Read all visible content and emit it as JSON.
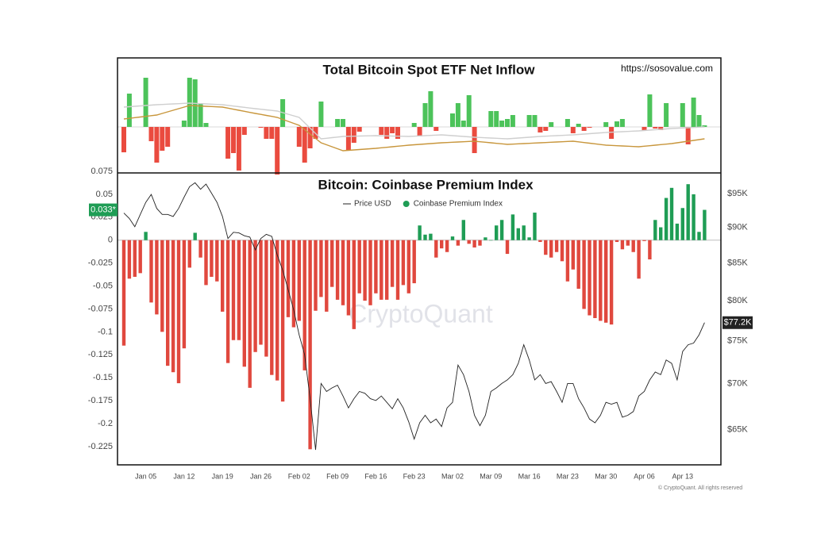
{
  "chart_data": [
    {
      "type": "bar",
      "title": "Total Bitcoin Spot ETF Net Inflow",
      "source": "https://sosovalue.com",
      "ylim": [
        -580,
        870
      ],
      "positive_color": "#4cc35a",
      "negative_color": "#ea4b3f",
      "values": [
        -320,
        420,
        null,
        null,
        620,
        -180,
        -450,
        -300,
        -250,
        null,
        null,
        80,
        620,
        600,
        300,
        50,
        null,
        null,
        null,
        -400,
        -330,
        -550,
        -100,
        null,
        null,
        -10,
        -150,
        -150,
        -600,
        350,
        null,
        null,
        -250,
        -450,
        -270,
        -150,
        320,
        null,
        null,
        100,
        100,
        -300,
        -200,
        -60,
        null,
        null,
        null,
        -100,
        -150,
        -80,
        -150,
        null,
        null,
        50,
        -120,
        300,
        450,
        -50,
        null,
        null,
        170,
        300,
        80,
        400,
        -330,
        null,
        null,
        200,
        200,
        80,
        100,
        150,
        null,
        null,
        150,
        150,
        -70,
        -50,
        60,
        null,
        null,
        100,
        -80,
        40,
        -50,
        -10,
        null,
        null,
        60,
        -150,
        70,
        100,
        null,
        null,
        null,
        -50,
        410,
        -20,
        -40,
        300,
        null,
        null,
        300,
        -220,
        370,
        150,
        20
      ],
      "lines": [
        {
          "color": "#c8963c",
          "values": [
            100,
            108,
            117,
            125,
            133,
            142,
            150,
            170,
            190,
            210,
            230,
            250,
            270,
            267,
            263,
            260,
            257,
            253,
            250,
            237,
            223,
            210,
            197,
            183,
            170,
            158,
            145,
            133,
            120,
            95,
            70,
            45,
            20,
            -35,
            -90,
            -145,
            -200,
            -225,
            -250,
            -275,
            -300,
            -295,
            -290,
            -285,
            -280,
            -275,
            -270,
            -263,
            -257,
            -250,
            -243,
            -237,
            -230,
            -225,
            -220,
            -215,
            -210,
            -205,
            -200,
            -197,
            -193,
            -190,
            -187,
            -183,
            -180,
            -187,
            -193,
            -200,
            -207,
            -213,
            -220,
            -217,
            -213,
            -210,
            -207,
            -203,
            -200,
            -197,
            -193,
            -190,
            -187,
            -183,
            -180,
            -188,
            -197,
            -205,
            -213,
            -222,
            -230,
            -233,
            -237,
            -240,
            -243,
            -247,
            -250,
            -243,
            -237,
            -230,
            -223,
            -217,
            -210,
            -200,
            -190,
            -180,
            -170,
            -160,
            -150
          ]
        },
        {
          "color": "#cfcfcf",
          "values": [
            250,
            255,
            260,
            265,
            270,
            275,
            280,
            283,
            287,
            290,
            293,
            297,
            300,
            297,
            293,
            290,
            287,
            283,
            280,
            272,
            263,
            255,
            247,
            238,
            230,
            223,
            215,
            208,
            200,
            180,
            160,
            140,
            120,
            53,
            -15,
            -83,
            -150,
            -143,
            -135,
            -128,
            -120,
            -118,
            -117,
            -115,
            -113,
            -112,
            -110,
            -112,
            -113,
            -115,
            -117,
            -118,
            -120,
            -117,
            -113,
            -110,
            -107,
            -103,
            -100,
            -105,
            -110,
            -115,
            -120,
            -125,
            -130,
            -133,
            -137,
            -140,
            -143,
            -147,
            -150,
            -145,
            -140,
            -135,
            -130,
            -125,
            -120,
            -117,
            -113,
            -110,
            -107,
            -103,
            -100,
            -95,
            -90,
            -85,
            -80,
            -75,
            -70,
            -67,
            -63,
            -60,
            -57,
            -53,
            -50,
            -45,
            -40,
            -35,
            -30,
            -25,
            -20,
            -17,
            -13,
            -10,
            -7,
            -3,
            0
          ]
        }
      ]
    },
    {
      "type": "combo",
      "title": "Bitcoin: Coinbase Premium Index",
      "watermark": "CryptoQuant",
      "copyright": "© CryptoQuant. All rights reserved",
      "categories": [
        null,
        null,
        null,
        null,
        "Jan 05",
        null,
        null,
        null,
        null,
        null,
        null,
        "Jan 12",
        null,
        null,
        null,
        null,
        null,
        null,
        "Jan 19",
        null,
        null,
        null,
        null,
        null,
        null,
        "Jan 26",
        null,
        null,
        null,
        null,
        null,
        null,
        "Feb 02",
        null,
        null,
        null,
        null,
        null,
        null,
        "Feb 09",
        null,
        null,
        null,
        null,
        null,
        null,
        "Feb 16",
        null,
        null,
        null,
        null,
        null,
        null,
        "Feb 23",
        null,
        null,
        null,
        null,
        null,
        null,
        "Mar 02",
        null,
        null,
        null,
        null,
        null,
        null,
        "Mar 09",
        null,
        null,
        null,
        null,
        null,
        null,
        "Mar 16",
        null,
        null,
        null,
        null,
        null,
        null,
        "Mar 23",
        null,
        null,
        null,
        null,
        null,
        null,
        "Mar 30",
        null,
        null,
        null,
        null,
        null,
        null,
        "Apr 06",
        null,
        null,
        null,
        null,
        null,
        null,
        "Apr 13",
        null,
        null,
        null,
        null
      ],
      "ylim": [
        -0.245,
        0.075
      ],
      "yticks": [
        0.075,
        0.05,
        0.025,
        0,
        -0.025,
        -0.05,
        -0.075,
        -0.1,
        -0.125,
        -0.15,
        -0.175,
        -0.2,
        -0.225
      ],
      "y2lim": [
        61400,
        98500
      ],
      "y2scale": "log",
      "y2ticks": [
        {
          "value": 95000,
          "label": "$95K"
        },
        {
          "value": 90000,
          "label": "$90K"
        },
        {
          "value": 85000,
          "label": "$85K"
        },
        {
          "value": 80000,
          "label": "$80K"
        },
        {
          "value": 75000,
          "label": "$75K"
        },
        {
          "value": 70000,
          "label": "$70K"
        },
        {
          "value": 65000,
          "label": "$65K"
        }
      ],
      "series": [
        {
          "name": "Price USD",
          "type": "line",
          "axis": "y2",
          "color": "#222222",
          "last_label": {
            "value": 77200,
            "label": "$77.2K"
          },
          "values": [
            92100,
            91300,
            90100,
            91900,
            93700,
            94900,
            92800,
            91900,
            91900,
            91600,
            92800,
            94500,
            96100,
            96700,
            95700,
            96500,
            95100,
            93700,
            91600,
            88400,
            89300,
            89200,
            88800,
            88600,
            86800,
            88400,
            89000,
            88700,
            86100,
            84000,
            81400,
            78800,
            75700,
            73300,
            68300,
            62900,
            70000,
            69100,
            69500,
            69800,
            68600,
            67300,
            68300,
            69100,
            68900,
            68300,
            68100,
            68600,
            67900,
            67200,
            68300,
            67300,
            65800,
            64000,
            65700,
            66500,
            65700,
            66100,
            65300,
            67300,
            67900,
            72100,
            71000,
            69100,
            66500,
            65400,
            66500,
            69100,
            69500,
            70000,
            70400,
            71000,
            72300,
            74500,
            72700,
            70400,
            71000,
            70000,
            70200,
            69100,
            67900,
            70000,
            70000,
            68300,
            67300,
            66100,
            65700,
            66500,
            67900,
            67700,
            67900,
            66300,
            66500,
            66900,
            68600,
            69100,
            70400,
            71300,
            71000,
            72700,
            72300,
            70400,
            73700,
            74500,
            74700,
            75700,
            77200
          ]
        },
        {
          "name": "Coinbase Premium Index",
          "type": "bar",
          "color": "#1f9d55",
          "negative_color": "#e0483e",
          "last_label": {
            "value": 0.033,
            "label": "0.033*"
          },
          "values": [
            -0.115,
            -0.042,
            -0.04,
            -0.036,
            0.009,
            -0.068,
            -0.081,
            -0.1,
            -0.137,
            -0.144,
            -0.156,
            -0.118,
            -0.03,
            0.008,
            -0.019,
            -0.049,
            -0.04,
            -0.045,
            -0.078,
            -0.134,
            -0.109,
            -0.109,
            -0.138,
            -0.161,
            -0.122,
            -0.114,
            -0.127,
            -0.147,
            -0.153,
            -0.176,
            -0.084,
            -0.095,
            -0.088,
            -0.142,
            -0.228,
            -0.077,
            -0.062,
            -0.078,
            -0.051,
            -0.065,
            -0.071,
            -0.082,
            -0.097,
            -0.058,
            -0.066,
            -0.071,
            -0.058,
            -0.065,
            -0.065,
            -0.051,
            -0.065,
            -0.049,
            -0.058,
            -0.047,
            0.016,
            0.006,
            0.007,
            -0.019,
            -0.009,
            -0.013,
            0.004,
            -0.006,
            0.022,
            -0.004,
            -0.008,
            -0.006,
            0.003,
            0,
            0.016,
            0.022,
            -0.015,
            0.028,
            0.013,
            0.016,
            0.003,
            0.03,
            -0.002,
            -0.016,
            -0.019,
            -0.013,
            -0.023,
            -0.045,
            -0.032,
            -0.053,
            -0.075,
            -0.082,
            -0.085,
            -0.088,
            -0.09,
            -0.092,
            -0.002,
            -0.01,
            -0.006,
            -0.013,
            -0.042,
            -0.001,
            -0.021,
            0.022,
            0.014,
            0.046,
            0.057,
            0.018,
            0.035,
            0.061,
            0.05,
            0.009,
            0.033
          ]
        }
      ]
    }
  ]
}
